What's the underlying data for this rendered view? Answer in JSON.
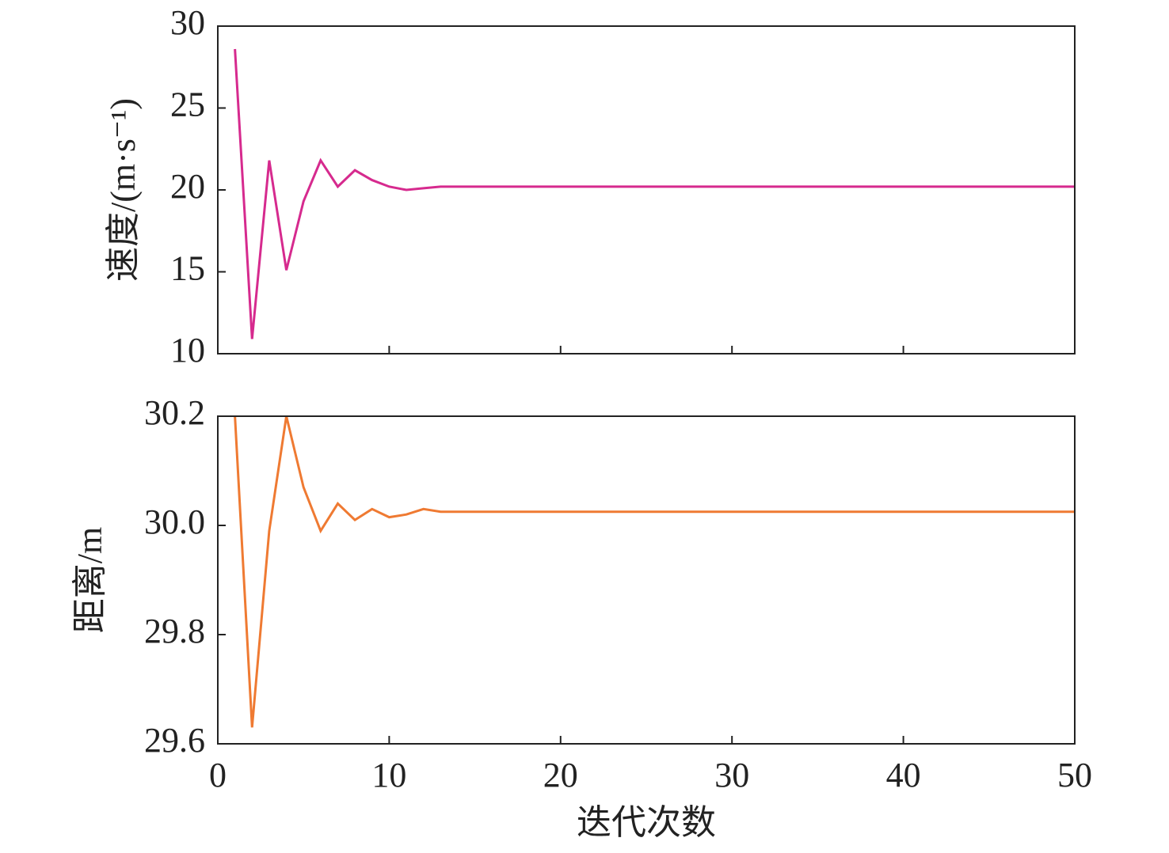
{
  "chart_data": [
    {
      "type": "line",
      "ylabel": "速度/(m·s⁻¹)",
      "color": "#d62a8e",
      "x": [
        1,
        2,
        3,
        4,
        5,
        6,
        7,
        8,
        9,
        10,
        11,
        12,
        13,
        14,
        15,
        16,
        17,
        18,
        19,
        20,
        21,
        22,
        23,
        24,
        25,
        26,
        27,
        28,
        29,
        30,
        31,
        32,
        33,
        34,
        35,
        36,
        37,
        38,
        39,
        40,
        41,
        42,
        43,
        44,
        45,
        46,
        47,
        48,
        49,
        50
      ],
      "values": [
        28.6,
        10.9,
        21.8,
        15.1,
        19.3,
        21.8,
        20.2,
        21.2,
        20.6,
        20.2,
        20.0,
        20.1,
        20.2,
        20.2,
        20.2,
        20.2,
        20.2,
        20.2,
        20.2,
        20.2,
        20.2,
        20.2,
        20.2,
        20.2,
        20.2,
        20.2,
        20.2,
        20.2,
        20.2,
        20.2,
        20.2,
        20.2,
        20.2,
        20.2,
        20.2,
        20.2,
        20.2,
        20.2,
        20.2,
        20.2,
        20.2,
        20.2,
        20.2,
        20.2,
        20.2,
        20.2,
        20.2,
        20.2,
        20.2,
        20.2
      ],
      "xlim": [
        0,
        50
      ],
      "xticks": [
        0,
        10,
        20,
        30,
        40,
        50
      ],
      "ylim": [
        10,
        30
      ],
      "yticks": [
        10,
        15,
        20,
        25,
        30
      ]
    },
    {
      "type": "line",
      "ylabel": "距离/m",
      "xlabel": "迭代次数",
      "color": "#ef7a32",
      "x": [
        1,
        2,
        3,
        4,
        5,
        6,
        7,
        8,
        9,
        10,
        11,
        12,
        13,
        14,
        15,
        16,
        17,
        18,
        19,
        20,
        21,
        22,
        23,
        24,
        25,
        26,
        27,
        28,
        29,
        30,
        31,
        32,
        33,
        34,
        35,
        36,
        37,
        38,
        39,
        40,
        41,
        42,
        43,
        44,
        45,
        46,
        47,
        48,
        49,
        50
      ],
      "values": [
        30.2,
        29.63,
        29.99,
        30.2,
        30.07,
        29.99,
        30.04,
        30.01,
        30.03,
        30.015,
        30.02,
        30.03,
        30.025,
        30.025,
        30.025,
        30.025,
        30.025,
        30.025,
        30.025,
        30.025,
        30.025,
        30.025,
        30.025,
        30.025,
        30.025,
        30.025,
        30.025,
        30.025,
        30.025,
        30.025,
        30.025,
        30.025,
        30.025,
        30.025,
        30.025,
        30.025,
        30.025,
        30.025,
        30.025,
        30.025,
        30.025,
        30.025,
        30.025,
        30.025,
        30.025,
        30.025,
        30.025,
        30.025,
        30.025,
        30.025
      ],
      "xlim": [
        0,
        50
      ],
      "xticks": [
        0,
        10,
        20,
        30,
        40,
        50
      ],
      "ylim": [
        29.6,
        30.2
      ],
      "yticks": [
        29.6,
        29.8,
        {
          "value": 30.0,
          "label": "30.0"
        },
        30.2
      ]
    }
  ]
}
